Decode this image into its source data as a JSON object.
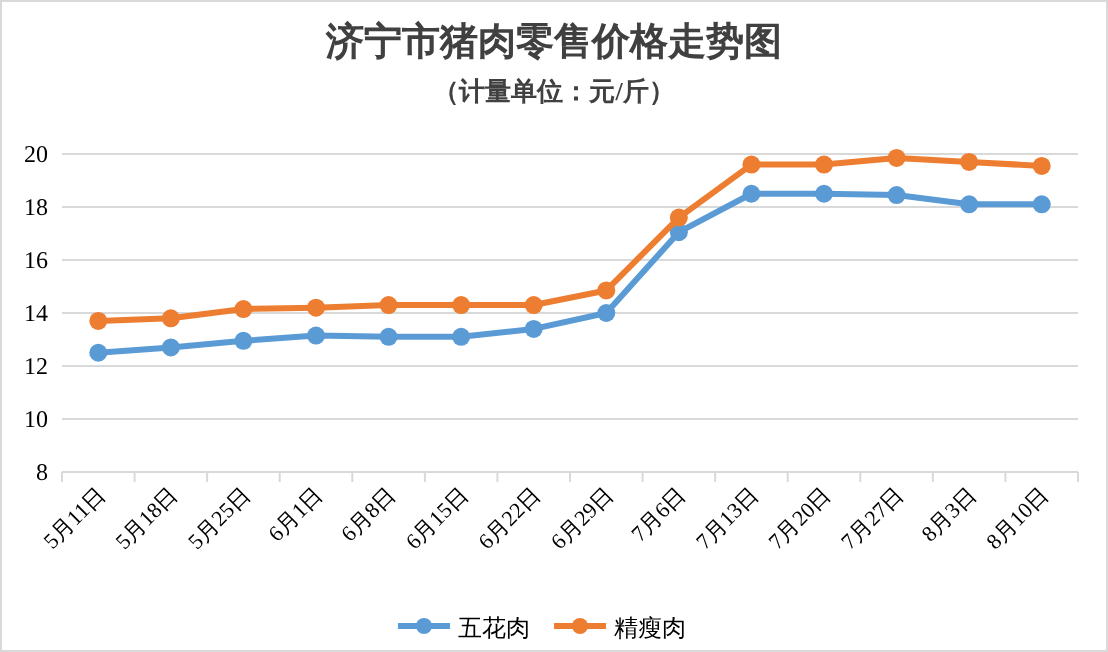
{
  "chart_data": {
    "type": "line",
    "title": "济宁市猪肉零售价格走势图",
    "subtitle": "（计量单位：元/斤）",
    "categories": [
      "5月11日",
      "5月18日",
      "5月25日",
      "6月1日",
      "6月8日",
      "6月15日",
      "6月22日",
      "6月29日",
      "7月6日",
      "7月13日",
      "7月20日",
      "7月27日",
      "8月3日",
      "8月10日"
    ],
    "series": [
      {
        "name": "五花肉",
        "color": "#5b9bd5",
        "values": [
          12.5,
          12.7,
          12.95,
          13.15,
          13.1,
          13.1,
          13.4,
          14.0,
          17.05,
          18.5,
          18.5,
          18.45,
          18.1,
          18.1
        ]
      },
      {
        "name": "精瘦肉",
        "color": "#ed7d31",
        "values": [
          13.7,
          13.8,
          14.15,
          14.2,
          14.3,
          14.3,
          14.3,
          14.85,
          17.6,
          19.6,
          19.6,
          19.85,
          19.7,
          19.55
        ]
      }
    ],
    "ylim": [
      8,
      20
    ],
    "yticks": [
      8,
      10,
      12,
      14,
      16,
      18,
      20
    ],
    "grid": "y",
    "legend": "bottom",
    "marker": "circle",
    "line_style": "solid"
  }
}
